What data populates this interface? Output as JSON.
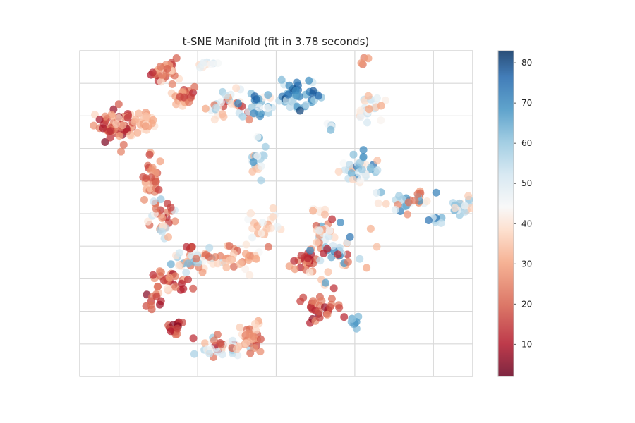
{
  "chart_data": {
    "type": "scatter",
    "title": "t-SNE Manifold (fit in 3.78 seconds)",
    "xlabel": "",
    "ylabel": "",
    "grid": true,
    "axis_tick_labels_visible": false,
    "colormap": "RdBu",
    "colorbar": {
      "range": [
        2,
        83
      ],
      "ticks": [
        10,
        20,
        30,
        40,
        50,
        60,
        70,
        80
      ],
      "tick_labels": [
        "10",
        "20",
        "30",
        "40",
        "50",
        "60",
        "70",
        "80"
      ],
      "low_color": "#67001f",
      "mid_color": "#f7f7f7",
      "high_color": "#053061"
    },
    "xlim": [
      -50,
      50
    ],
    "ylim": [
      -50,
      50
    ],
    "clusters": [
      {
        "cx": -40,
        "cy": 26,
        "rx": 4,
        "ry": 5,
        "n": 60,
        "cmin": 4,
        "cmax": 38
      },
      {
        "cx": -33,
        "cy": 28,
        "rx": 2,
        "ry": 3,
        "n": 25,
        "cmin": 28,
        "cmax": 40
      },
      {
        "cx": -28,
        "cy": 44,
        "rx": 3,
        "ry": 4,
        "n": 30,
        "cmin": 8,
        "cmax": 42
      },
      {
        "cx": -23,
        "cy": 36,
        "rx": 3,
        "ry": 3,
        "n": 25,
        "cmin": 10,
        "cmax": 40
      },
      {
        "cx": -18,
        "cy": 46,
        "rx": 2,
        "ry": 1,
        "n": 12,
        "cmin": 38,
        "cmax": 55
      },
      {
        "cx": -12,
        "cy": 33,
        "rx": 5,
        "ry": 4,
        "n": 35,
        "cmin": 10,
        "cmax": 62
      },
      {
        "cx": -5,
        "cy": 34,
        "rx": 4,
        "ry": 3,
        "n": 25,
        "cmin": 40,
        "cmax": 78
      },
      {
        "cx": 6,
        "cy": 36,
        "rx": 6,
        "ry": 4,
        "n": 45,
        "cmin": 50,
        "cmax": 82
      },
      {
        "cx": 14,
        "cy": 27,
        "rx": 1,
        "ry": 1,
        "n": 6,
        "cmin": 45,
        "cmax": 65
      },
      {
        "cx": 24,
        "cy": 32,
        "rx": 3,
        "ry": 4,
        "n": 30,
        "cmin": 30,
        "cmax": 55
      },
      {
        "cx": -5,
        "cy": 16,
        "rx": 2,
        "ry": 4,
        "n": 20,
        "cmin": 30,
        "cmax": 70
      },
      {
        "cx": 21,
        "cy": 14,
        "rx": 4,
        "ry": 4,
        "n": 35,
        "cmin": 30,
        "cmax": 75
      },
      {
        "cx": 34,
        "cy": 4,
        "rx": 5,
        "ry": 3,
        "n": 30,
        "cmin": 15,
        "cmax": 75
      },
      {
        "cx": 41,
        "cy": -2,
        "rx": 2,
        "ry": 1,
        "n": 8,
        "cmin": 50,
        "cmax": 75
      },
      {
        "cx": 47,
        "cy": 2,
        "rx": 2,
        "ry": 3,
        "n": 20,
        "cmin": 30,
        "cmax": 72
      },
      {
        "cx": -32,
        "cy": 11,
        "rx": 2,
        "ry": 6,
        "n": 30,
        "cmin": 15,
        "cmax": 35
      },
      {
        "cx": -29,
        "cy": -2,
        "rx": 3,
        "ry": 7,
        "n": 35,
        "cmin": 10,
        "cmax": 60
      },
      {
        "cx": -20,
        "cy": -14,
        "rx": 8,
        "ry": 3,
        "n": 40,
        "cmin": 20,
        "cmax": 65
      },
      {
        "cx": -9,
        "cy": -13,
        "rx": 4,
        "ry": 3,
        "n": 30,
        "cmin": 18,
        "cmax": 45
      },
      {
        "cx": -27,
        "cy": -21,
        "rx": 4,
        "ry": 4,
        "n": 30,
        "cmin": 8,
        "cmax": 40
      },
      {
        "cx": -31,
        "cy": -27,
        "rx": 2,
        "ry": 2,
        "n": 10,
        "cmin": 5,
        "cmax": 25
      },
      {
        "cx": -22,
        "cy": -10,
        "rx": 1,
        "ry": 1,
        "n": 5,
        "cmin": 10,
        "cmax": 20
      },
      {
        "cx": -3,
        "cy": -3,
        "rx": 3,
        "ry": 4,
        "n": 25,
        "cmin": 30,
        "cmax": 48
      },
      {
        "cx": -26,
        "cy": -35,
        "rx": 2,
        "ry": 2,
        "n": 15,
        "cmin": 4,
        "cmax": 25
      },
      {
        "cx": -14,
        "cy": -41,
        "rx": 6,
        "ry": 3,
        "n": 45,
        "cmin": 10,
        "cmax": 60
      },
      {
        "cx": -6,
        "cy": -38,
        "rx": 3,
        "ry": 4,
        "n": 30,
        "cmin": 15,
        "cmax": 40
      },
      {
        "cx": 7,
        "cy": -15,
        "rx": 3,
        "ry": 3,
        "n": 25,
        "cmin": 5,
        "cmax": 30
      },
      {
        "cx": 15,
        "cy": -12,
        "rx": 6,
        "ry": 7,
        "n": 50,
        "cmin": 10,
        "cmax": 75
      },
      {
        "cx": 12,
        "cy": -29,
        "rx": 4,
        "ry": 3,
        "n": 30,
        "cmin": 5,
        "cmax": 30
      },
      {
        "cx": 11,
        "cy": 1,
        "rx": 2,
        "ry": 1,
        "n": 8,
        "cmin": 30,
        "cmax": 45
      },
      {
        "cx": 12,
        "cy": -5,
        "rx": 3,
        "ry": 1,
        "n": 10,
        "cmin": 25,
        "cmax": 50
      },
      {
        "cx": 20,
        "cy": -33,
        "rx": 1,
        "ry": 2,
        "n": 8,
        "cmin": 55,
        "cmax": 72
      },
      {
        "cx": 22,
        "cy": 47,
        "rx": 1,
        "ry": 1,
        "n": 4,
        "cmin": 20,
        "cmax": 30
      }
    ]
  }
}
